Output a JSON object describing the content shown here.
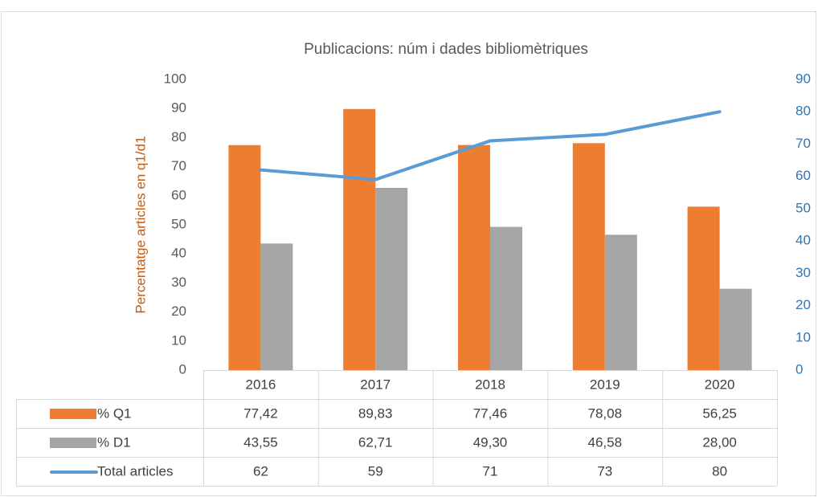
{
  "chart_data": {
    "type": "bar",
    "title": "Publicacions: núm i dades bibliomètriques",
    "y_label": "Percentatge articles en q1/d1",
    "categories": [
      "2016",
      "2017",
      "2018",
      "2019",
      "2020"
    ],
    "series": [
      {
        "name": "% Q1",
        "color": "#ed7d31",
        "type": "bar",
        "values": [
          77.42,
          89.83,
          77.46,
          78.08,
          56.25
        ],
        "value_labels": [
          "77,42",
          "89,83",
          "77,46",
          "78,08",
          "56,25"
        ]
      },
      {
        "name": "% D1",
        "color": "#a5a5a5",
        "type": "bar",
        "values": [
          43.55,
          62.71,
          49.3,
          46.58,
          28.0
        ],
        "value_labels": [
          "43,55",
          "62,71",
          "49,30",
          "46,58",
          "28,00"
        ]
      },
      {
        "name": "Total articles",
        "color": "#5b9bd5",
        "type": "line",
        "axis": "y2",
        "values": [
          62,
          59,
          71,
          73,
          80
        ]
      }
    ],
    "ylim": [
      0,
      100
    ],
    "yticks": [
      0,
      10,
      20,
      30,
      40,
      50,
      60,
      70,
      80,
      90,
      100
    ],
    "y2lim": [
      0,
      90
    ],
    "y2ticks": [
      0,
      10,
      20,
      30,
      40,
      50,
      60,
      70,
      80,
      90
    ],
    "data_table": true,
    "grid": false
  }
}
